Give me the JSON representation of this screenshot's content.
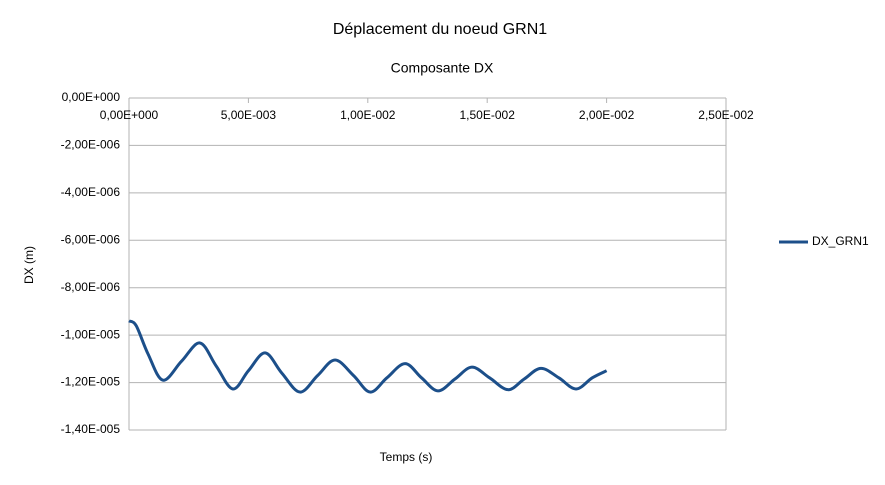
{
  "chart_data": {
    "type": "line",
    "title": "Déplacement du noeud GRN1",
    "subtitle": "Composante DX",
    "xlabel": "Temps (s)",
    "ylabel": "DX (m)",
    "x": [
      0,
      0.0003,
      0.0008,
      0.00142,
      0.0022,
      0.00297,
      0.00365,
      0.00435,
      0.005,
      0.0057,
      0.0064,
      0.00716,
      0.0079,
      0.00863,
      0.0094,
      0.0101,
      0.0108,
      0.01156,
      0.01225,
      0.01294,
      0.01365,
      0.01436,
      0.0151,
      0.01587,
      0.01655,
      0.01725,
      0.018,
      0.01872,
      0.0194,
      0.02
    ],
    "series": [
      {
        "name": "DX_GRN1",
        "color": "#1c4f8a",
        "values": [
          -9.4e-06,
          -9.6e-06,
          -1.08e-05,
          -1.19e-05,
          -1.11e-05,
          -1.033e-05,
          -1.13e-05,
          -1.227e-05,
          -1.15e-05,
          -1.075e-05,
          -1.16e-05,
          -1.24e-05,
          -1.17e-05,
          -1.105e-05,
          -1.17e-05,
          -1.24e-05,
          -1.18e-05,
          -1.12e-05,
          -1.18e-05,
          -1.235e-05,
          -1.185e-05,
          -1.135e-05,
          -1.18e-05,
          -1.23e-05,
          -1.185e-05,
          -1.14e-05,
          -1.18e-05,
          -1.227e-05,
          -1.18e-05,
          -1.15e-05
        ]
      }
    ],
    "xlim": [
      0,
      0.025
    ],
    "xticks": [
      {
        "value": 0,
        "label": "0,00E+000"
      },
      {
        "value": 0.005,
        "label": "5,00E-003"
      },
      {
        "value": 0.01,
        "label": "1,00E-002"
      },
      {
        "value": 0.015,
        "label": "1,50E-002"
      },
      {
        "value": 0.02,
        "label": "2,00E-002"
      },
      {
        "value": 0.025,
        "label": "2,50E-002"
      }
    ],
    "ylim": [
      -1.4e-05,
      0
    ],
    "yticks": [
      {
        "value": 0,
        "label": "0,00E+000"
      },
      {
        "value": -2e-06,
        "label": "-2,00E-006"
      },
      {
        "value": -4e-06,
        "label": "-4,00E-006"
      },
      {
        "value": -6e-06,
        "label": "-6,00E-006"
      },
      {
        "value": -8e-06,
        "label": "-8,00E-006"
      },
      {
        "value": -1e-05,
        "label": "-1,00E-005"
      },
      {
        "value": -1.2e-05,
        "label": "-1,20E-005"
      },
      {
        "value": -1.4e-05,
        "label": "-1,40E-005"
      }
    ],
    "grid": true,
    "legend": "right"
  }
}
